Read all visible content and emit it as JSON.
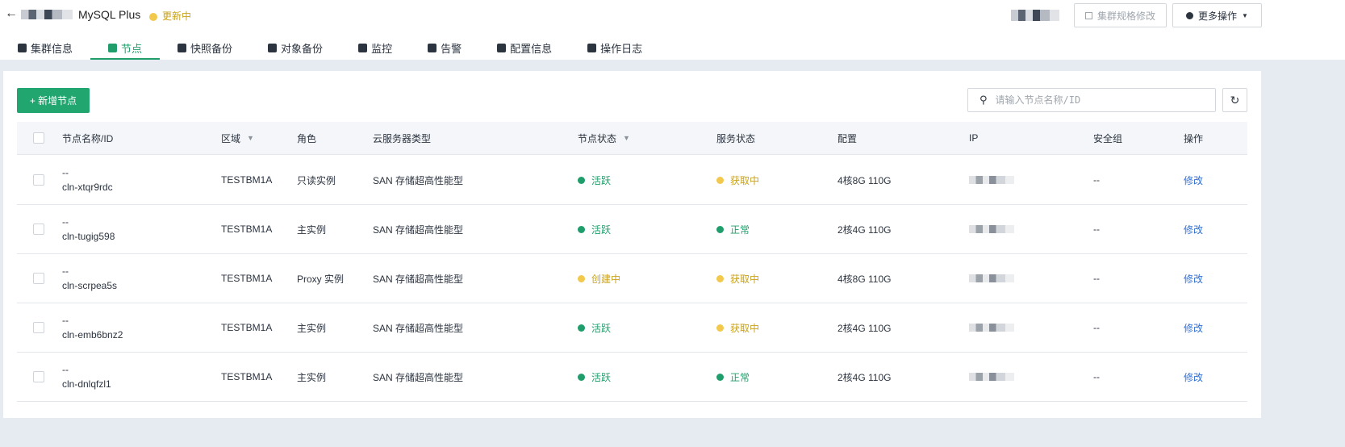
{
  "header": {
    "title": "MySQL Plus",
    "status": "更新中",
    "status_color": "#f2c94c",
    "spec_button": "集群规格修改",
    "more_button": "更多操作"
  },
  "tabs": [
    {
      "label": "集群信息",
      "icon": "cube-icon"
    },
    {
      "label": "节点",
      "icon": "server-icon",
      "active": true
    },
    {
      "label": "快照备份",
      "icon": "camera-icon"
    },
    {
      "label": "对象备份",
      "icon": "storage-icon"
    },
    {
      "label": "监控",
      "icon": "monitor-icon"
    },
    {
      "label": "告警",
      "icon": "alarm-icon"
    },
    {
      "label": "配置信息",
      "icon": "database-icon"
    },
    {
      "label": "操作日志",
      "icon": "log-icon"
    }
  ],
  "toolbar": {
    "add_label": "+ 新增节点",
    "search_placeholder": "请输入节点名称/ID"
  },
  "columns": [
    "节点名称/ID",
    "区域",
    "角色",
    "云服务器类型",
    "节点状态",
    "服务状态",
    "配置",
    "IP",
    "安全组",
    "操作"
  ],
  "rows": [
    {
      "name": "--",
      "id": "cln-xtqr9rdc",
      "region": "TESTBM1A",
      "role": "只读实例",
      "type": "SAN 存储超高性能型",
      "node_status": "活跃",
      "node_color": "green",
      "service_status": "获取中",
      "service_color": "yellow",
      "config": "4核8G 110G",
      "sg": "--",
      "action": "修改"
    },
    {
      "name": "--",
      "id": "cln-tugig598",
      "region": "TESTBM1A",
      "role": "主实例",
      "type": "SAN 存储超高性能型",
      "node_status": "活跃",
      "node_color": "green",
      "service_status": "正常",
      "service_color": "green",
      "config": "2核4G 110G",
      "sg": "--",
      "action": "修改"
    },
    {
      "name": "--",
      "id": "cln-scrpea5s",
      "region": "TESTBM1A",
      "role": "Proxy 实例",
      "type": "SAN 存储超高性能型",
      "node_status": "创建中",
      "node_color": "yellow",
      "service_status": "获取中",
      "service_color": "yellow",
      "config": "4核8G 110G",
      "sg": "--",
      "action": "修改"
    },
    {
      "name": "--",
      "id": "cln-emb6bnz2",
      "region": "TESTBM1A",
      "role": "主实例",
      "type": "SAN 存储超高性能型",
      "node_status": "活跃",
      "node_color": "green",
      "service_status": "获取中",
      "service_color": "yellow",
      "config": "2核4G 110G",
      "sg": "--",
      "action": "修改"
    },
    {
      "name": "--",
      "id": "cln-dnlqfzl1",
      "region": "TESTBM1A",
      "role": "主实例",
      "type": "SAN 存储超高性能型",
      "node_status": "活跃",
      "node_color": "green",
      "service_status": "正常",
      "service_color": "green",
      "config": "2核4G 110G",
      "sg": "--",
      "action": "修改"
    }
  ],
  "colors": {
    "green": "#1f9e6b",
    "yellow": "#f2c94c",
    "accent": "#21a66f"
  }
}
